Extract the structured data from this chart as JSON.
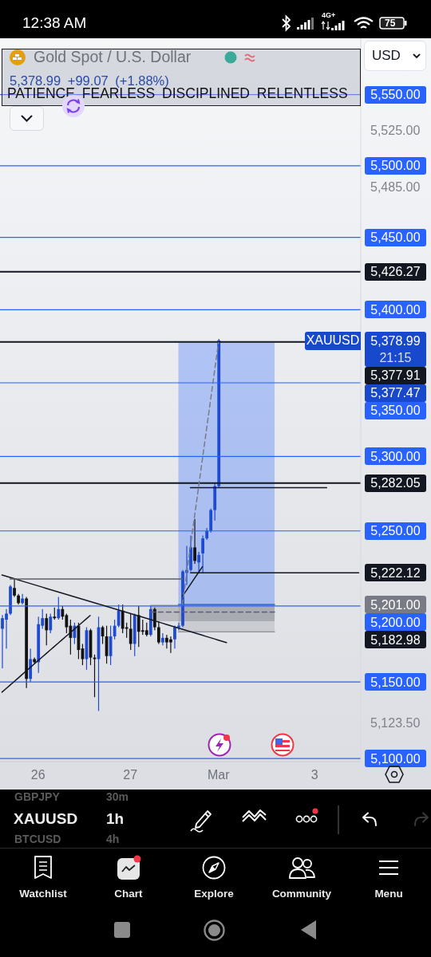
{
  "chart_data": {
    "type": "candlestick",
    "title": "Gold Spot / U.S. Dollar",
    "subtitle": "5,378.99 +99.07 (+1.88%)",
    "categories": [
      null,
      null,
      null,
      null,
      null,
      null,
      null,
      null,
      null,
      "26",
      null,
      null,
      null,
      null,
      null,
      null,
      null,
      null,
      null,
      null,
      null,
      null,
      null,
      null,
      null,
      null,
      null,
      null,
      null,
      null,
      null,
      null,
      "27",
      null,
      null,
      null,
      null,
      null,
      null,
      null,
      null,
      null,
      null,
      null,
      null,
      null,
      null,
      null,
      null,
      null,
      null,
      null,
      null,
      null,
      "Mar",
      null,
      null,
      null,
      null,
      null,
      null,
      null,
      null,
      null,
      null,
      null,
      null,
      null,
      null,
      null,
      null,
      null,
      null,
      null,
      null,
      null,
      null,
      null,
      "3",
      null,
      null,
      null,
      null,
      null,
      null,
      null,
      null,
      null,
      null,
      null
    ],
    "ohlc": [
      [
        5185,
        5194,
        5159,
        5192
      ],
      [
        5191,
        5198,
        5172,
        5195
      ],
      [
        5195,
        5214,
        5194,
        5213
      ],
      [
        5212,
        5218,
        5206,
        5207
      ],
      [
        5207,
        5208,
        5201,
        5202
      ],
      [
        5202,
        5208,
        5201,
        5205
      ],
      [
        5205,
        5206,
        5146,
        5152
      ],
      [
        5152,
        5172,
        5150,
        5165
      ],
      [
        5165,
        5166,
        5162,
        5163
      ],
      [
        5163,
        5193,
        5156,
        5188
      ],
      [
        5187,
        5198,
        5185,
        5192
      ],
      [
        5192,
        5195,
        5174,
        5184
      ],
      [
        5184,
        5195,
        5182,
        5193
      ],
      [
        5193,
        5199,
        5191,
        5192
      ],
      [
        5192,
        5206,
        5191,
        5198
      ],
      [
        5198,
        5200,
        5191,
        5193
      ],
      [
        5194,
        5195,
        5182,
        5186
      ],
      [
        5187,
        5191,
        5168,
        5179
      ],
      [
        5179,
        5189,
        5175,
        5187
      ],
      [
        5187,
        5189,
        5165,
        5171
      ],
      [
        5172,
        5175,
        5161,
        5165
      ],
      [
        5165,
        5186,
        5158,
        5184
      ],
      [
        5184,
        5185,
        5161,
        5166
      ],
      [
        5166,
        5168,
        5140,
        5165
      ],
      [
        5165,
        5193,
        5131,
        5186
      ],
      [
        5186,
        5187,
        5175,
        5180
      ],
      [
        5180,
        5187,
        5162,
        5167
      ],
      [
        5167,
        5187,
        5161,
        5180
      ],
      [
        5180,
        5191,
        5178,
        5187
      ],
      [
        5187,
        5201,
        5186,
        5197
      ],
      [
        5197,
        5201,
        5182,
        5185
      ],
      [
        5186,
        5189,
        5179,
        5185
      ],
      [
        5185,
        5195,
        5171,
        5175
      ],
      [
        5175,
        5195,
        5167,
        5194
      ],
      [
        5194,
        5200,
        5173,
        5183
      ],
      [
        5184,
        5191,
        5181,
        5183
      ],
      [
        5184,
        5189,
        5180,
        5181
      ],
      [
        5181,
        5200,
        5180,
        5198
      ],
      [
        5198,
        5199,
        5184,
        5186
      ],
      [
        5186,
        5190,
        5175,
        5176
      ],
      [
        5176,
        5182,
        5174,
        5179
      ],
      [
        5179,
        5181,
        5172,
        5176
      ],
      [
        5178,
        5180,
        5169,
        5176
      ],
      [
        5178,
        5187,
        5172,
        5186
      ],
      [
        5186,
        5189,
        5184,
        5187
      ],
      [
        5187,
        5224,
        5186,
        5223
      ],
      [
        5222,
        5240,
        5214,
        5224
      ],
      [
        5224,
        5247,
        5223,
        5239
      ],
      [
        5239,
        5258,
        5228,
        5230
      ],
      [
        5229,
        5236,
        5223,
        5234
      ],
      [
        5235,
        5247,
        5222,
        5245
      ],
      [
        5245,
        5252,
        5244,
        5250
      ],
      [
        5250,
        5265,
        5249,
        5264
      ],
      [
        5264,
        5282,
        5257,
        5280
      ],
      [
        5280,
        5380,
        5279,
        5378.99
      ],
      null,
      null,
      null,
      null,
      null,
      null,
      null,
      null,
      null,
      null,
      null,
      null,
      null,
      null,
      null,
      null,
      null,
      null,
      null,
      null,
      null,
      null,
      null,
      null,
      null,
      null,
      null,
      null,
      null,
      null,
      null,
      null,
      null,
      null,
      null
    ],
    "colors": [
      "#1e4bd2",
      "#1e4bd2",
      "#1e4bd2",
      "#131313",
      "#131313",
      "#1e4bd2",
      "#131313",
      "#1e4bd2",
      "#131313",
      "#1e4bd2",
      "#1e4bd2",
      "#131313",
      "#1e4bd2",
      "#131313",
      "#1e4bd2",
      "#131313",
      "#131313",
      "#131313",
      "#1e4bd2",
      "#131313",
      "#131313",
      "#1e4bd2",
      "#131313",
      "#131313",
      "#1e4bd2",
      "#131313",
      "#131313",
      "#1e4bd2",
      "#1e4bd2",
      "#1e4bd2",
      "#131313",
      "#131313",
      "#131313",
      "#1e4bd2",
      "#131313",
      "#131313",
      "#131313",
      "#1e4bd2",
      "#131313",
      "#131313",
      "#1e4bd2",
      "#131313",
      "#131313",
      "#1e4bd2",
      "#1e4bd2",
      "#1e4bd2",
      "#1e4bd2",
      "#1e4bd2",
      "#131313",
      "#1e4bd2",
      "#1e4bd2",
      "#1e4bd2",
      "#1e4bd2",
      "#1e4bd2",
      "#1e4bd2",
      null,
      null,
      null,
      null,
      null,
      null,
      null,
      null,
      null,
      null,
      null,
      null,
      null,
      null,
      null,
      null,
      null,
      null,
      null,
      null,
      null,
      null,
      null,
      null,
      null,
      null,
      null,
      null,
      null,
      null,
      null,
      null,
      null,
      null,
      null
    ],
    "series": [
      {
        "type": "line",
        "color": "#2962ff",
        "values": [
          null,
          null,
          null,
          null,
          null,
          null,
          null,
          null,
          null,
          null,
          null,
          null,
          null,
          null,
          null,
          null,
          null,
          null,
          null,
          null,
          null,
          null,
          null,
          null,
          null,
          null,
          null,
          null,
          null,
          null,
          null,
          null,
          null,
          null,
          null,
          null,
          null,
          null,
          null,
          null,
          null,
          null,
          null,
          null,
          5201,
          5201,
          5201,
          5201,
          5201,
          5201,
          5201,
          5201,
          5201,
          5201,
          5201,
          5201,
          5201,
          5201,
          5201,
          5201,
          5201,
          5201,
          5201,
          5201,
          5201,
          5201,
          5201,
          5201,
          5201,
          null,
          null,
          null,
          null,
          null,
          null,
          null,
          null,
          null,
          null,
          null,
          null,
          null,
          null,
          null,
          null,
          null,
          null,
          null,
          null,
          null
        ],
        "lower": [
          null,
          null,
          null,
          null,
          null,
          null,
          null,
          null,
          null,
          null,
          null,
          null,
          null,
          null,
          null,
          null,
          null,
          null,
          null,
          null,
          null,
          null,
          null,
          null,
          null,
          null,
          null,
          null,
          null,
          null,
          null,
          null,
          null,
          null,
          null,
          null,
          null,
          null,
          null,
          null,
          null,
          null,
          null,
          null,
          5201,
          5201,
          5201,
          5201,
          5201,
          5201,
          5201,
          5201,
          5201,
          5201,
          5201,
          5201,
          5201,
          5201,
          5201,
          5201,
          5201,
          5201,
          5201,
          5201,
          5201,
          5201,
          5201,
          5201,
          5201,
          null,
          null,
          null,
          null,
          null,
          null,
          null,
          null,
          null,
          null,
          null,
          null,
          null,
          null,
          null,
          null,
          null,
          null,
          null,
          null,
          null
        ],
        "upper": [
          null,
          null,
          null,
          null,
          null,
          null,
          null,
          null,
          null,
          null,
          null,
          null,
          null,
          null,
          null,
          null,
          null,
          null,
          null,
          null,
          null,
          null,
          null,
          null,
          null,
          null,
          null,
          null,
          null,
          null,
          null,
          null,
          null,
          null,
          null,
          null,
          null,
          null,
          null,
          null,
          null,
          null,
          null,
          null,
          5377.47,
          5377.47,
          5377.47,
          5377.47,
          5377.47,
          5377.47,
          5377.47,
          5377.47,
          5377.47,
          5377.47,
          5377.47,
          5377.47,
          5377.47,
          5377.47,
          5377.47,
          5377.47,
          5377.47,
          5377.47,
          5377.47,
          5377.47,
          5377.47,
          5377.47,
          5377.47,
          5377.47,
          5377.47,
          null,
          null,
          null,
          null,
          null,
          null,
          null,
          null,
          null,
          null,
          null,
          null,
          null,
          null,
          null,
          null,
          null,
          null,
          null,
          null,
          null
        ]
      },
      {
        "type": "line",
        "color": "#9598a1",
        "values": [
          null,
          null,
          null,
          null,
          null,
          null,
          null,
          null,
          null,
          null,
          null,
          null,
          null,
          null,
          null,
          null,
          null,
          null,
          null,
          null,
          null,
          null,
          null,
          null,
          null,
          null,
          null,
          null,
          null,
          null,
          null,
          null,
          null,
          null,
          null,
          null,
          null,
          null,
          null,
          null,
          null,
          null,
          null,
          null,
          5182.98,
          5182.98,
          5182.98,
          5182.98,
          5182.98,
          5182.98,
          5182.98,
          5182.98,
          5182.98,
          5182.98,
          5182.98,
          5182.98,
          5182.98,
          5182.98,
          5182.98,
          5182.98,
          5182.98,
          5182.98,
          5182.98,
          5182.98,
          5182.98,
          5182.98,
          5182.98,
          5182.98,
          5182.98,
          null,
          null,
          null,
          null,
          null,
          null,
          null,
          null,
          null,
          null,
          null,
          null,
          null,
          null,
          null,
          null,
          null,
          null,
          null,
          null,
          null
        ],
        "lower": [
          null,
          null,
          null,
          null,
          null,
          null,
          null,
          null,
          null,
          null,
          null,
          null,
          null,
          null,
          null,
          null,
          null,
          null,
          null,
          null,
          null,
          null,
          null,
          null,
          null,
          null,
          null,
          null,
          null,
          null,
          null,
          null,
          null,
          null,
          null,
          null,
          null,
          null,
          null,
          null,
          null,
          null,
          null,
          null,
          5182.98,
          5182.98,
          5182.98,
          5182.98,
          5182.98,
          5182.98,
          5182.98,
          5182.98,
          5182.98,
          5182.98,
          5182.98,
          5182.98,
          5182.98,
          5182.98,
          5182.98,
          5182.98,
          5182.98,
          5182.98,
          5182.98,
          5182.98,
          5182.98,
          5182.98,
          5182.98,
          5182.98,
          5182.98,
          null,
          null,
          null,
          null,
          null,
          null,
          null,
          null,
          null,
          null,
          null,
          null,
          null,
          null,
          null,
          null,
          null,
          null,
          null,
          null,
          null
        ],
        "upper": [
          null,
          null,
          null,
          null,
          null,
          null,
          null,
          null,
          null,
          null,
          null,
          null,
          null,
          null,
          null,
          null,
          null,
          null,
          null,
          null,
          null,
          null,
          null,
          null,
          null,
          null,
          null,
          null,
          null,
          null,
          null,
          null,
          null,
          null,
          null,
          null,
          null,
          null,
          null,
          null,
          null,
          null,
          null,
          null,
          5201,
          5201,
          5201,
          5201,
          5201,
          5201,
          5201,
          5201,
          5201,
          5201,
          5201,
          5201,
          5201,
          5201,
          5201,
          5201,
          5201,
          5201,
          5201,
          5201,
          5201,
          5201,
          5201,
          5201,
          5201,
          null,
          null,
          null,
          null,
          null,
          null,
          null,
          null,
          null,
          null,
          null,
          null,
          null,
          null,
          null,
          null,
          null,
          null,
          null,
          null,
          null
        ]
      },
      {
        "type": "line",
        "color": "#5d606b",
        "line_style": "dashed",
        "values": [
          null,
          null,
          null,
          null,
          null,
          null,
          null,
          null,
          null,
          null,
          null,
          null,
          null,
          null,
          null,
          null,
          null,
          null,
          null,
          null,
          null,
          null,
          null,
          null,
          null,
          null,
          null,
          null,
          null,
          null,
          null,
          null,
          null,
          null,
          null,
          null,
          null,
          5196,
          5196,
          5196,
          5196,
          5196,
          5196,
          5196,
          5196,
          5196,
          5196,
          5196,
          5196,
          5196,
          5196,
          5196,
          5196,
          5196,
          5196,
          5196,
          5196,
          5196,
          5196,
          5196,
          5196,
          5196,
          5196,
          5196,
          5196,
          5196,
          5196,
          5196,
          5196,
          null,
          null,
          null,
          null,
          null,
          null,
          null,
          null,
          null,
          null,
          null,
          null,
          null,
          null,
          null,
          null,
          null,
          null,
          null,
          null,
          null
        ],
        "lower": [
          null,
          null,
          null,
          null,
          null,
          null,
          null,
          null,
          null,
          null,
          null,
          null,
          null,
          null,
          null,
          null,
          null,
          null,
          null,
          null,
          null,
          null,
          null,
          null,
          null,
          null,
          null,
          null,
          null,
          null,
          null,
          null,
          null,
          null,
          null,
          null,
          null,
          5190,
          5190,
          5190,
          5190,
          5190,
          5190,
          5190,
          5190,
          5190,
          5190,
          5190,
          5190,
          5190,
          5190,
          5190,
          5190,
          5190,
          5190,
          5190,
          5190,
          5190,
          5190,
          5190,
          5190,
          5190,
          5190,
          5190,
          5190,
          5190,
          5190,
          5190,
          5190,
          null,
          null,
          null,
          null,
          null,
          null,
          null,
          null,
          null,
          null,
          null,
          null,
          null,
          null,
          null,
          null,
          null,
          null,
          null,
          null,
          null
        ],
        "upper": [
          null,
          null,
          null,
          null,
          null,
          null,
          null,
          null,
          null,
          null,
          null,
          null,
          null,
          null,
          null,
          null,
          null,
          null,
          null,
          null,
          null,
          null,
          null,
          null,
          null,
          null,
          null,
          null,
          null,
          null,
          null,
          null,
          null,
          null,
          null,
          null,
          null,
          5201,
          5201,
          5201,
          5201,
          5201,
          5201,
          5201,
          5201,
          5201,
          5201,
          5201,
          5201,
          5201,
          5201,
          5201,
          5201,
          5201,
          5201,
          5201,
          5201,
          5201,
          5201,
          5201,
          5201,
          5201,
          5201,
          5201,
          5201,
          5201,
          5201,
          5201,
          5201,
          null,
          null,
          null,
          null,
          null,
          null,
          null,
          null,
          null,
          null,
          null,
          null,
          null,
          null,
          null,
          null,
          null,
          null,
          null,
          null,
          null
        ]
      },
      {
        "type": "line",
        "color": "#131722",
        "values": [
          5220.6,
          5219.8,
          5219.0,
          5218.2,
          5217.4,
          5216.6,
          5215.8,
          5215.0,
          5214.2,
          5213.4,
          5212.6,
          5211.8,
          5211.0,
          5210.2,
          5209.4,
          5208.6,
          5207.8,
          5207.0,
          5206.2,
          5205.4,
          5204.6,
          5203.8,
          5203.0,
          5202.2,
          5201.4,
          5200.7,
          5199.9,
          5199.1,
          5198.3,
          5197.5,
          5196.7,
          5195.9,
          5195.1,
          5194.3,
          5193.5,
          5192.7,
          5191.9,
          5191.1,
          5190.3,
          5189.5,
          5188.7,
          5187.9,
          5187.1,
          5186.3,
          5185.5,
          5184.7,
          5183.9,
          5183.1,
          5182.3,
          5181.5,
          5180.7,
          5179.9,
          5179.1,
          5178.3,
          5177.5,
          5176.7,
          5175.9,
          null,
          null,
          null,
          null,
          null,
          null,
          null,
          null,
          null,
          null,
          null,
          null,
          null,
          null,
          null,
          null,
          null,
          null,
          null,
          null,
          null,
          null,
          null,
          null,
          null,
          null,
          null,
          null,
          null,
          null,
          null,
          null,
          null
        ]
      },
      {
        "type": "line",
        "color": "#131722",
        "values": [
          5143.3,
          5145.6,
          5147.9,
          5150.2,
          5152.5,
          5154.8,
          5157.1,
          5159.4,
          5161.7,
          5164.0,
          5166.3,
          5168.6,
          5170.9,
          5173.2,
          5175.5,
          5177.8,
          5180.1,
          5182.3,
          5184.6,
          5186.9,
          5189.2,
          5191.5,
          5193.8,
          null,
          null,
          null,
          null,
          null,
          null,
          null,
          null,
          null,
          null,
          null,
          null,
          null,
          null,
          null,
          null,
          null,
          null,
          null,
          null,
          null,
          null,
          null,
          null,
          null,
          null,
          null,
          null,
          null,
          null,
          null,
          null,
          null,
          null,
          null,
          null,
          null,
          null,
          null,
          null,
          null,
          null,
          null,
          null,
          null,
          null,
          null,
          null,
          null,
          null,
          null,
          null,
          null,
          null,
          null,
          null,
          null,
          null,
          null,
          null,
          null,
          null,
          null,
          null,
          null,
          null,
          null
        ]
      },
      {
        "type": "line",
        "color": "#131722",
        "values": [
          null,
          null,
          null,
          null,
          null,
          null,
          null,
          null,
          null,
          null,
          null,
          null,
          null,
          null,
          null,
          null,
          null,
          null,
          null,
          null,
          null,
          null,
          null,
          null,
          null,
          null,
          null,
          null,
          null,
          null,
          null,
          null,
          null,
          null,
          null,
          null,
          null,
          null,
          null,
          null,
          null,
          null,
          null,
          null,
          null,
          5206.5,
          5210.4,
          5214.3,
          5218.3,
          5222.2,
          5226.1,
          null,
          null,
          null,
          null,
          null,
          null,
          null,
          null,
          null,
          null,
          null,
          null,
          null,
          null,
          null,
          null,
          null,
          null,
          null,
          null,
          null,
          null,
          null,
          null,
          null,
          null,
          null,
          null,
          null,
          null,
          null,
          null,
          null,
          null,
          null,
          null,
          null,
          null,
          null
        ]
      },
      {
        "type": "line",
        "color": "#5d606b",
        "values": [
          null,
          null,
          5218,
          5218,
          5218,
          5218,
          5218,
          5218,
          5218,
          5218,
          5218,
          5218,
          5218,
          5218,
          5218,
          5218,
          5218,
          5218,
          5218,
          5218,
          5218,
          5218,
          5218,
          5218,
          5218,
          5218,
          5218,
          5218,
          5218,
          5218,
          5218,
          5218,
          5218,
          5218,
          5218,
          5218,
          5218,
          5218,
          5218,
          5218,
          5218,
          5218,
          5218,
          5218,
          5218,
          5218,
          null,
          null,
          null,
          null,
          null,
          null,
          null,
          null,
          null,
          null,
          null,
          null,
          null,
          null,
          null,
          null,
          null,
          null,
          null,
          null,
          null,
          null,
          null,
          null,
          null,
          null,
          null,
          null,
          null,
          null,
          null,
          null,
          null,
          null,
          null,
          null,
          null,
          null,
          null,
          null,
          null,
          null,
          null,
          null
        ]
      },
      {
        "type": "line",
        "color": "#131722",
        "values": [
          null,
          null,
          null,
          null,
          null,
          null,
          null,
          null,
          null,
          null,
          null,
          null,
          null,
          null,
          null,
          null,
          null,
          null,
          null,
          null,
          null,
          null,
          null,
          null,
          null,
          null,
          null,
          null,
          null,
          null,
          null,
          null,
          null,
          null,
          null,
          null,
          null,
          null,
          null,
          null,
          null,
          null,
          null,
          null,
          null,
          null,
          null,
          5222.12,
          5222.12,
          5222.12,
          5222.12,
          5222.12,
          5222.12,
          5222.12,
          5222.12,
          5222.12,
          5222.12,
          5222.12,
          5222.12,
          5222.12,
          5222.12,
          5222.12,
          5222.12,
          5222.12,
          5222.12,
          5222.12,
          5222.12,
          5222.12,
          5222.12,
          5222.12,
          5222.12,
          5222.12,
          5222.12,
          5222.12,
          5222.12,
          5222.12,
          5222.12,
          5222.12,
          5222.12,
          5222.12,
          5222.12,
          5222.12,
          5222.12,
          5222.12,
          5222.12,
          5222.12,
          5222.12,
          5222.12,
          5222.12,
          5222.12
        ]
      },
      {
        "type": "line",
        "color": "#131722",
        "values": [
          null,
          null,
          null,
          null,
          null,
          null,
          null,
          null,
          null,
          null,
          null,
          null,
          null,
          null,
          null,
          null,
          null,
          null,
          null,
          null,
          null,
          null,
          null,
          null,
          null,
          null,
          null,
          null,
          null,
          null,
          null,
          null,
          null,
          null,
          null,
          null,
          null,
          null,
          null,
          null,
          null,
          null,
          null,
          null,
          null,
          null,
          null,
          5279,
          5279,
          5279,
          5279,
          5279,
          5279,
          5279,
          5279,
          5279,
          5279,
          5279,
          5279,
          5279,
          5279,
          5279,
          5279,
          5279,
          5279,
          5279,
          5279,
          5279,
          5279,
          5279,
          5279,
          5279,
          5279,
          5279,
          5279,
          5279,
          5279,
          5279,
          5279,
          5279,
          5279,
          5279,
          null,
          null,
          null,
          null,
          null,
          null,
          null,
          null
        ]
      },
      {
        "type": "line",
        "color": "#787b86",
        "line_style": "dashed",
        "values": [
          null,
          null,
          null,
          null,
          null,
          null,
          null,
          null,
          null,
          null,
          null,
          null,
          null,
          null,
          null,
          null,
          null,
          null,
          null,
          null,
          null,
          null,
          null,
          null,
          null,
          null,
          null,
          null,
          null,
          null,
          null,
          null,
          null,
          null,
          null,
          null,
          null,
          null,
          null,
          null,
          null,
          null,
          null,
          null,
          null,
          5201.0,
          5220.3,
          5239.7,
          5259.2,
          5278.7,
          5298.3,
          5318.0,
          5337.7,
          5357.6,
          5377.47,
          null,
          null,
          null,
          null,
          null,
          null,
          null,
          null,
          null,
          null,
          null,
          null,
          null,
          null,
          null,
          null,
          null,
          null,
          null,
          null,
          null,
          null,
          null,
          null,
          null,
          null,
          null,
          null,
          null,
          null,
          null,
          null,
          null,
          null,
          null
        ]
      }
    ],
    "ylim": [
      5098,
      5590
    ],
    "yticks": [
      {
        "value": 5525,
        "label": "5,525.00"
      },
      {
        "value": 5485,
        "label": "5,485.00"
      },
      {
        "value": 5123.5,
        "label": "5,123.50"
      }
    ],
    "log": true,
    "ref_lines": [
      {
        "axis": "y",
        "value": 5550,
        "label": "5,550.00",
        "color": "#2962ff"
      },
      {
        "axis": "y",
        "value": 5500,
        "label": "5,500.00",
        "color": "#2962ff"
      },
      {
        "axis": "y",
        "value": 5450,
        "label": "5,450.00",
        "color": "#2962ff"
      },
      {
        "axis": "y",
        "value": 5426.27,
        "label": "5,426.27",
        "color": "#131722"
      },
      {
        "axis": "y",
        "value": 5400,
        "label": "5,400.00",
        "color": "#2962ff"
      },
      {
        "axis": "y",
        "value": 5377.91,
        "label": "5,377.91",
        "color": "#131722"
      },
      {
        "axis": "y",
        "value": 5350,
        "label": "5,350.00",
        "color": "#2962ff"
      },
      {
        "axis": "y",
        "value": 5300,
        "label": "5,300.00",
        "color": "#2962ff"
      },
      {
        "axis": "y",
        "value": 5282.05,
        "label": "5,282.05",
        "color": "#131722"
      },
      {
        "axis": "y",
        "value": 5250,
        "label": "5,250.00",
        "color": "#2962ff"
      },
      {
        "axis": "y",
        "value": 5200,
        "label": "5,200.00",
        "color": "#2962ff"
      },
      {
        "axis": "y",
        "value": 5150,
        "label": "5,150.00",
        "color": "#2962ff"
      },
      {
        "axis": "y",
        "value": 5100,
        "label": "5,100.00",
        "color": "#2962ff"
      }
    ],
    "annotations": [
      "PATIENCE FEARLESS DISCIPLINED RELENTLESS",
      "XAUUSD",
      "5,378.99",
      "21:15",
      "5,377.47",
      "5,222.12",
      "5,201.00",
      "5,182.98",
      "12:38 AM",
      "4G+",
      "75",
      "USD",
      "GBPJPY",
      "30m",
      "XAUUSD",
      "1h",
      "BTCUSD",
      "4h",
      "Watchlist",
      "Chart",
      "Explore",
      "Community",
      "Menu"
    ]
  }
}
